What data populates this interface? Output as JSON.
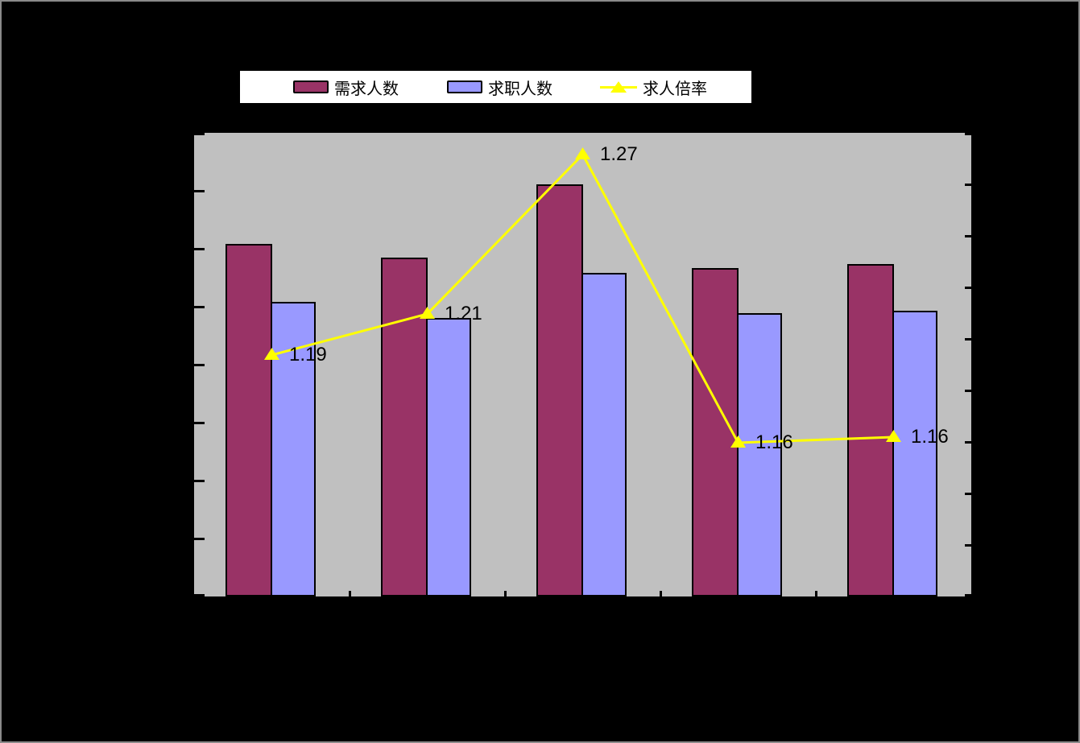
{
  "chart": {
    "background": "#000000",
    "frame_border_color": "#8a8a8a",
    "plot": {
      "background": "#c0c0c0",
      "border_color": "#000000"
    },
    "legend": {
      "background": "#ffffff",
      "border_color": "#000000",
      "items": [
        {
          "label": "需求人数",
          "swatch": "bar",
          "color": "#993366"
        },
        {
          "label": "求职人数",
          "swatch": "bar",
          "color": "#9999ff"
        },
        {
          "label": "求人倍率",
          "swatch": "line-triangle",
          "color": "#ffff00"
        }
      ]
    }
  },
  "chart_data": {
    "type": "combo",
    "title": "",
    "categories": [
      "",
      "",
      "",
      "",
      ""
    ],
    "legend_position": "top",
    "gridlines": false,
    "axes": {
      "left_tick_count": 9,
      "right_tick_count": 10,
      "x_divider_tick_count": 4,
      "tick_labels_visible": false
    },
    "series": [
      {
        "name": "需求人数",
        "type": "bar",
        "color": "#993366",
        "axis": "left",
        "relative_heights": [
          0.76,
          0.731,
          0.889,
          0.708,
          0.717
        ]
      },
      {
        "name": "求职人数",
        "type": "bar",
        "color": "#9999ff",
        "axis": "left",
        "relative_heights": [
          0.635,
          0.601,
          0.698,
          0.611,
          0.616
        ]
      },
      {
        "name": "求人倍率",
        "type": "line",
        "color": "#ffff00",
        "axis": "right",
        "values": [
          1.19,
          1.21,
          1.27,
          1.16,
          1.16
        ],
        "labels": [
          "1.19",
          "1.21",
          "1.27",
          "1.16",
          "1.16"
        ],
        "relative_y_from_top": [
          0.479,
          0.391,
          0.047,
          0.668,
          0.656
        ]
      }
    ]
  }
}
